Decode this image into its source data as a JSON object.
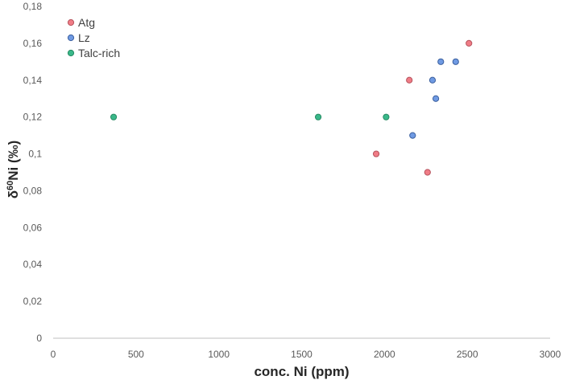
{
  "chart_data": {
    "type": "scatter",
    "xlabel": "conc. Ni (ppm)",
    "ylabel_prefix": "δ",
    "ylabel_sup": "60",
    "ylabel_suffix": "Ni (‰)",
    "xlim": [
      0,
      3000
    ],
    "ylim": [
      0,
      0.18
    ],
    "x_ticks": [
      0,
      500,
      1000,
      1500,
      2000,
      2500,
      3000
    ],
    "x_tick_labels": [
      "0",
      "500",
      "1000",
      "1500",
      "2000",
      "2500",
      "3000"
    ],
    "y_ticks": [
      0,
      0.02,
      0.04,
      0.06,
      0.08,
      0.1,
      0.12,
      0.14,
      0.16,
      0.18
    ],
    "y_tick_labels": [
      "0",
      "0,02",
      "0,04",
      "0,06",
      "0,08",
      "0,1",
      "0,12",
      "0,14",
      "0,16",
      "0,18"
    ],
    "grid": false,
    "legend_position": "top-left",
    "series": [
      {
        "name": "Atg",
        "color": "#f07c86",
        "edge": "#b5525c",
        "points": [
          [
            1950,
            0.1
          ],
          [
            2150,
            0.14
          ],
          [
            2260,
            0.09
          ],
          [
            2510,
            0.16
          ]
        ]
      },
      {
        "name": "Lz",
        "color": "#6f9ae3",
        "edge": "#3b5f9e",
        "points": [
          [
            2170,
            0.11
          ],
          [
            2290,
            0.14
          ],
          [
            2310,
            0.13
          ],
          [
            2340,
            0.15
          ],
          [
            2430,
            0.15
          ]
        ]
      },
      {
        "name": "Talc-rich",
        "color": "#3ab88a",
        "edge": "#258a62",
        "points": [
          [
            365,
            0.12
          ],
          [
            1600,
            0.12
          ],
          [
            2010,
            0.12
          ]
        ]
      }
    ]
  }
}
